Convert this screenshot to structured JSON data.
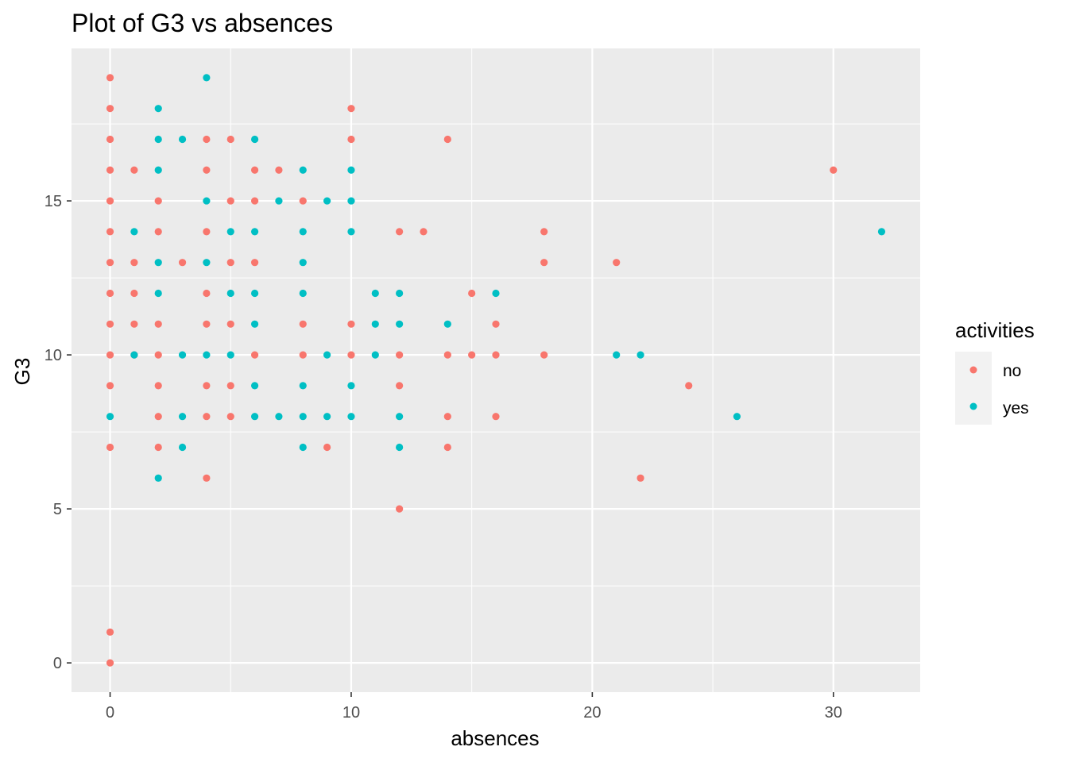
{
  "chart_data": {
    "type": "scatter",
    "title": "Plot of G3 vs absences",
    "xlabel": "absences",
    "ylabel": "G3",
    "xlim": [
      -1.6,
      33.6
    ],
    "ylim": [
      -0.95,
      19.95
    ],
    "x_ticks": [
      0,
      10,
      20,
      30
    ],
    "y_ticks": [
      0,
      5,
      10,
      15
    ],
    "grid": true,
    "legend": {
      "title": "activities",
      "position": "right",
      "entries": [
        "no",
        "yes"
      ]
    },
    "colors": {
      "no": "#F8766D",
      "yes": "#00BFC4",
      "panel": "#EBEBEB",
      "grid": "#FFFFFF"
    },
    "series": [
      {
        "name": "no",
        "color": "#F8766D",
        "points": [
          [
            0,
            19
          ],
          [
            0,
            18
          ],
          [
            0,
            17
          ],
          [
            0,
            16
          ],
          [
            0,
            15
          ],
          [
            0,
            14
          ],
          [
            0,
            13
          ],
          [
            0,
            12
          ],
          [
            0,
            11
          ],
          [
            0,
            10
          ],
          [
            0,
            9
          ],
          [
            0,
            7
          ],
          [
            0,
            1
          ],
          [
            0,
            0
          ],
          [
            1,
            16
          ],
          [
            1,
            13
          ],
          [
            1,
            12
          ],
          [
            1,
            11
          ],
          [
            1,
            10
          ],
          [
            2,
            15
          ],
          [
            2,
            14
          ],
          [
            2,
            11
          ],
          [
            2,
            10
          ],
          [
            2,
            9
          ],
          [
            2,
            8
          ],
          [
            2,
            7
          ],
          [
            3,
            13
          ],
          [
            4,
            17
          ],
          [
            4,
            16
          ],
          [
            4,
            14
          ],
          [
            4,
            12
          ],
          [
            4,
            11
          ],
          [
            4,
            9
          ],
          [
            4,
            8
          ],
          [
            4,
            6
          ],
          [
            5,
            17
          ],
          [
            5,
            15
          ],
          [
            5,
            13
          ],
          [
            5,
            11
          ],
          [
            5,
            9
          ],
          [
            5,
            8
          ],
          [
            6,
            16
          ],
          [
            6,
            15
          ],
          [
            6,
            13
          ],
          [
            6,
            10
          ],
          [
            7,
            16
          ],
          [
            8,
            15
          ],
          [
            8,
            11
          ],
          [
            8,
            10
          ],
          [
            9,
            7
          ],
          [
            10,
            18
          ],
          [
            10,
            17
          ],
          [
            10,
            11
          ],
          [
            10,
            10
          ],
          [
            12,
            14
          ],
          [
            12,
            10
          ],
          [
            12,
            9
          ],
          [
            12,
            5
          ],
          [
            13,
            14
          ],
          [
            14,
            17
          ],
          [
            14,
            10
          ],
          [
            14,
            8
          ],
          [
            14,
            7
          ],
          [
            15,
            12
          ],
          [
            15,
            10
          ],
          [
            16,
            11
          ],
          [
            16,
            10
          ],
          [
            16,
            8
          ],
          [
            18,
            14
          ],
          [
            18,
            13
          ],
          [
            18,
            10
          ],
          [
            21,
            13
          ],
          [
            22,
            6
          ],
          [
            24,
            9
          ],
          [
            30,
            16
          ]
        ]
      },
      {
        "name": "yes",
        "color": "#00BFC4",
        "points": [
          [
            0,
            8
          ],
          [
            1,
            14
          ],
          [
            1,
            10
          ],
          [
            2,
            18
          ],
          [
            2,
            17
          ],
          [
            2,
            16
          ],
          [
            2,
            13
          ],
          [
            2,
            12
          ],
          [
            2,
            6
          ],
          [
            3,
            17
          ],
          [
            3,
            10
          ],
          [
            3,
            8
          ],
          [
            3,
            7
          ],
          [
            4,
            19
          ],
          [
            4,
            15
          ],
          [
            4,
            13
          ],
          [
            4,
            10
          ],
          [
            5,
            14
          ],
          [
            5,
            12
          ],
          [
            5,
            10
          ],
          [
            6,
            17
          ],
          [
            6,
            14
          ],
          [
            6,
            12
          ],
          [
            6,
            11
          ],
          [
            6,
            9
          ],
          [
            6,
            8
          ],
          [
            7,
            15
          ],
          [
            7,
            8
          ],
          [
            8,
            16
          ],
          [
            8,
            14
          ],
          [
            8,
            13
          ],
          [
            8,
            12
          ],
          [
            8,
            9
          ],
          [
            8,
            8
          ],
          [
            8,
            7
          ],
          [
            9,
            15
          ],
          [
            9,
            10
          ],
          [
            9,
            8
          ],
          [
            10,
            16
          ],
          [
            10,
            15
          ],
          [
            10,
            14
          ],
          [
            10,
            9
          ],
          [
            10,
            8
          ],
          [
            11,
            12
          ],
          [
            11,
            11
          ],
          [
            11,
            10
          ],
          [
            12,
            12
          ],
          [
            12,
            11
          ],
          [
            12,
            8
          ],
          [
            12,
            7
          ],
          [
            14,
            11
          ],
          [
            16,
            12
          ],
          [
            21,
            10
          ],
          [
            22,
            10
          ],
          [
            26,
            8
          ],
          [
            32,
            14
          ]
        ]
      }
    ]
  }
}
